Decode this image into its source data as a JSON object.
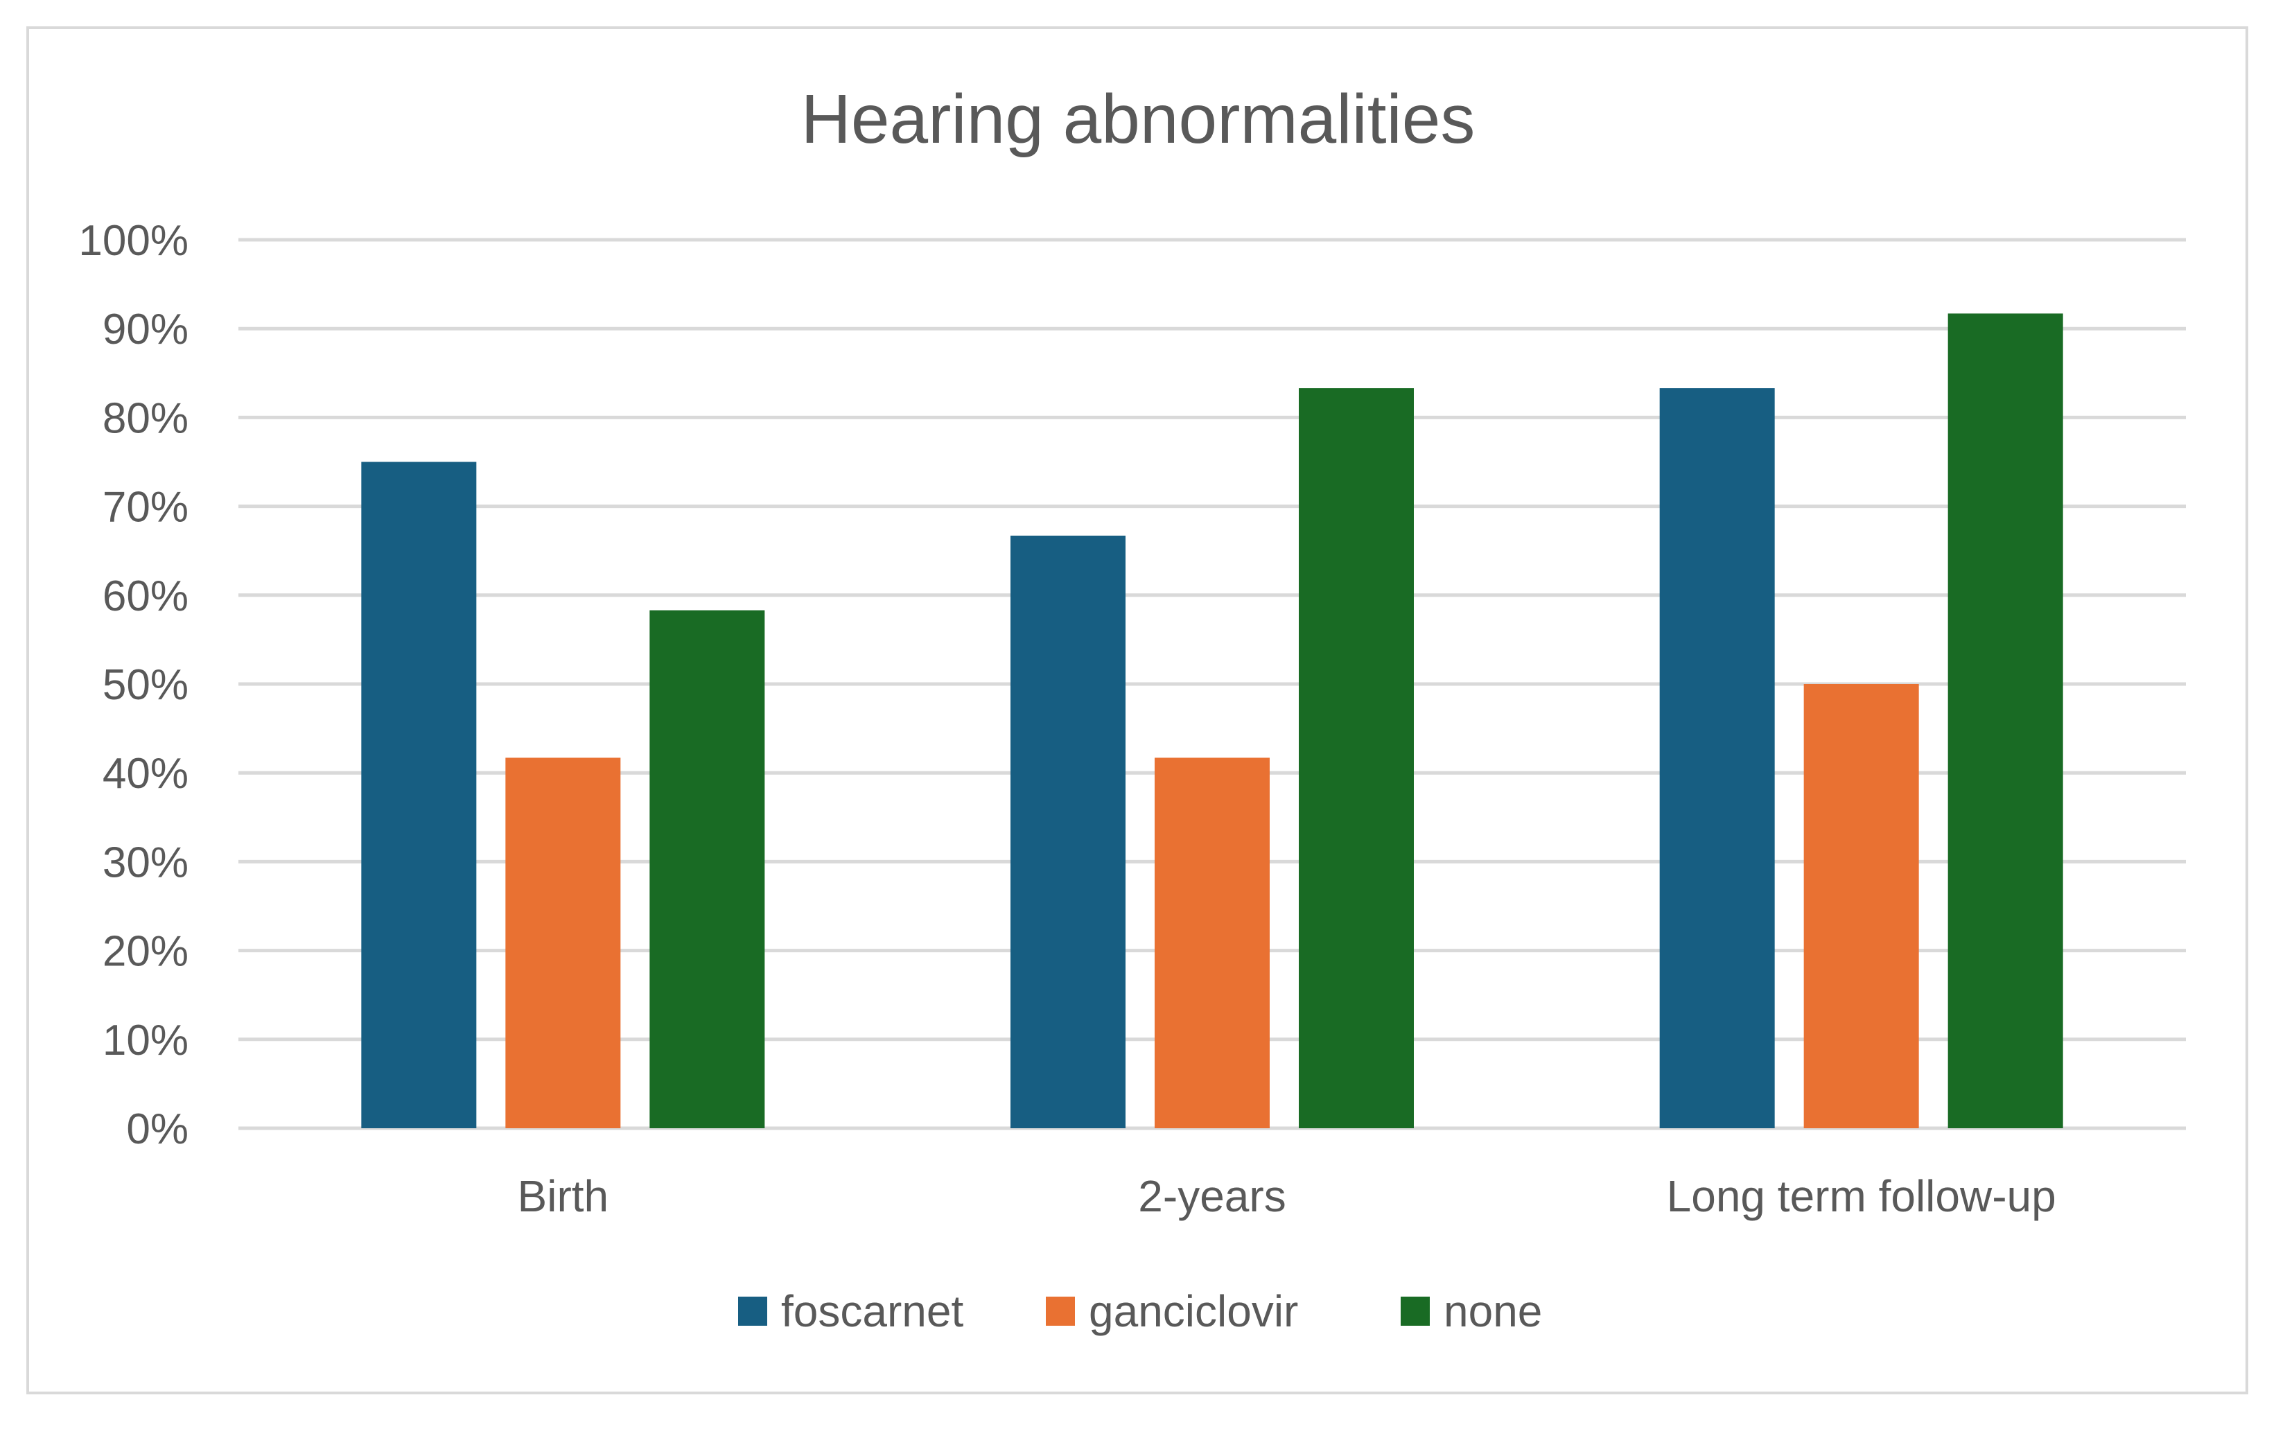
{
  "chart_data": {
    "type": "bar",
    "title": "Hearing abnormalities",
    "xlabel": "",
    "ylabel": "",
    "ylim": [
      0,
      100
    ],
    "y_ticks": [
      "0%",
      "10%",
      "20%",
      "30%",
      "40%",
      "50%",
      "60%",
      "70%",
      "80%",
      "90%",
      "100%"
    ],
    "y_tick_values": [
      0,
      10,
      20,
      30,
      40,
      50,
      60,
      70,
      80,
      90,
      100
    ],
    "grid": true,
    "legend_position": "bottom",
    "categories": [
      "Birth",
      "2-years",
      "Long term follow-up"
    ],
    "series": [
      {
        "name": "foscarnet",
        "color": "#175e82",
        "values": [
          75,
          66.7,
          83.3
        ]
      },
      {
        "name": "ganciclovir",
        "color": "#e97132",
        "values": [
          41.7,
          41.7,
          50
        ]
      },
      {
        "name": "none",
        "color": "#196b24",
        "values": [
          58.3,
          83.3,
          91.7
        ]
      }
    ]
  }
}
